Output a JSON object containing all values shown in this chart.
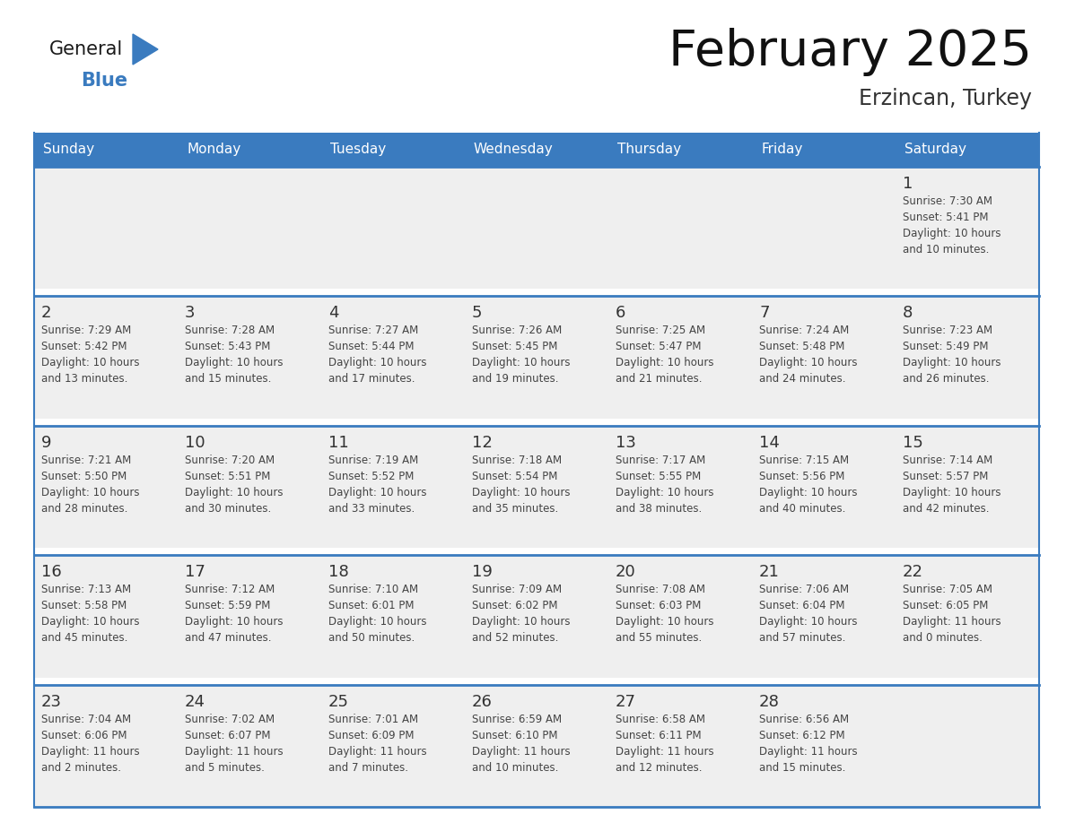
{
  "title": "February 2025",
  "subtitle": "Erzincan, Turkey",
  "days_of_week": [
    "Sunday",
    "Monday",
    "Tuesday",
    "Wednesday",
    "Thursday",
    "Friday",
    "Saturday"
  ],
  "header_bg": "#3a7bbf",
  "header_text_color": "#ffffff",
  "cell_bg": "#efefef",
  "white_bg": "#ffffff",
  "number_color": "#333333",
  "text_color": "#444444",
  "line_color": "#3a7bbf",
  "background_color": "#ffffff",
  "logo_general_color": "#1a1a1a",
  "logo_blue_color": "#3a7bbf",
  "calendar_data": [
    [
      {
        "day": null,
        "info": null
      },
      {
        "day": null,
        "info": null
      },
      {
        "day": null,
        "info": null
      },
      {
        "day": null,
        "info": null
      },
      {
        "day": null,
        "info": null
      },
      {
        "day": null,
        "info": null
      },
      {
        "day": 1,
        "info": "Sunrise: 7:30 AM\nSunset: 5:41 PM\nDaylight: 10 hours\nand 10 minutes."
      }
    ],
    [
      {
        "day": 2,
        "info": "Sunrise: 7:29 AM\nSunset: 5:42 PM\nDaylight: 10 hours\nand 13 minutes."
      },
      {
        "day": 3,
        "info": "Sunrise: 7:28 AM\nSunset: 5:43 PM\nDaylight: 10 hours\nand 15 minutes."
      },
      {
        "day": 4,
        "info": "Sunrise: 7:27 AM\nSunset: 5:44 PM\nDaylight: 10 hours\nand 17 minutes."
      },
      {
        "day": 5,
        "info": "Sunrise: 7:26 AM\nSunset: 5:45 PM\nDaylight: 10 hours\nand 19 minutes."
      },
      {
        "day": 6,
        "info": "Sunrise: 7:25 AM\nSunset: 5:47 PM\nDaylight: 10 hours\nand 21 minutes."
      },
      {
        "day": 7,
        "info": "Sunrise: 7:24 AM\nSunset: 5:48 PM\nDaylight: 10 hours\nand 24 minutes."
      },
      {
        "day": 8,
        "info": "Sunrise: 7:23 AM\nSunset: 5:49 PM\nDaylight: 10 hours\nand 26 minutes."
      }
    ],
    [
      {
        "day": 9,
        "info": "Sunrise: 7:21 AM\nSunset: 5:50 PM\nDaylight: 10 hours\nand 28 minutes."
      },
      {
        "day": 10,
        "info": "Sunrise: 7:20 AM\nSunset: 5:51 PM\nDaylight: 10 hours\nand 30 minutes."
      },
      {
        "day": 11,
        "info": "Sunrise: 7:19 AM\nSunset: 5:52 PM\nDaylight: 10 hours\nand 33 minutes."
      },
      {
        "day": 12,
        "info": "Sunrise: 7:18 AM\nSunset: 5:54 PM\nDaylight: 10 hours\nand 35 minutes."
      },
      {
        "day": 13,
        "info": "Sunrise: 7:17 AM\nSunset: 5:55 PM\nDaylight: 10 hours\nand 38 minutes."
      },
      {
        "day": 14,
        "info": "Sunrise: 7:15 AM\nSunset: 5:56 PM\nDaylight: 10 hours\nand 40 minutes."
      },
      {
        "day": 15,
        "info": "Sunrise: 7:14 AM\nSunset: 5:57 PM\nDaylight: 10 hours\nand 42 minutes."
      }
    ],
    [
      {
        "day": 16,
        "info": "Sunrise: 7:13 AM\nSunset: 5:58 PM\nDaylight: 10 hours\nand 45 minutes."
      },
      {
        "day": 17,
        "info": "Sunrise: 7:12 AM\nSunset: 5:59 PM\nDaylight: 10 hours\nand 47 minutes."
      },
      {
        "day": 18,
        "info": "Sunrise: 7:10 AM\nSunset: 6:01 PM\nDaylight: 10 hours\nand 50 minutes."
      },
      {
        "day": 19,
        "info": "Sunrise: 7:09 AM\nSunset: 6:02 PM\nDaylight: 10 hours\nand 52 minutes."
      },
      {
        "day": 20,
        "info": "Sunrise: 7:08 AM\nSunset: 6:03 PM\nDaylight: 10 hours\nand 55 minutes."
      },
      {
        "day": 21,
        "info": "Sunrise: 7:06 AM\nSunset: 6:04 PM\nDaylight: 10 hours\nand 57 minutes."
      },
      {
        "day": 22,
        "info": "Sunrise: 7:05 AM\nSunset: 6:05 PM\nDaylight: 11 hours\nand 0 minutes."
      }
    ],
    [
      {
        "day": 23,
        "info": "Sunrise: 7:04 AM\nSunset: 6:06 PM\nDaylight: 11 hours\nand 2 minutes."
      },
      {
        "day": 24,
        "info": "Sunrise: 7:02 AM\nSunset: 6:07 PM\nDaylight: 11 hours\nand 5 minutes."
      },
      {
        "day": 25,
        "info": "Sunrise: 7:01 AM\nSunset: 6:09 PM\nDaylight: 11 hours\nand 7 minutes."
      },
      {
        "day": 26,
        "info": "Sunrise: 6:59 AM\nSunset: 6:10 PM\nDaylight: 11 hours\nand 10 minutes."
      },
      {
        "day": 27,
        "info": "Sunrise: 6:58 AM\nSunset: 6:11 PM\nDaylight: 11 hours\nand 12 minutes."
      },
      {
        "day": 28,
        "info": "Sunrise: 6:56 AM\nSunset: 6:12 PM\nDaylight: 11 hours\nand 15 minutes."
      },
      {
        "day": null,
        "info": null
      }
    ]
  ]
}
